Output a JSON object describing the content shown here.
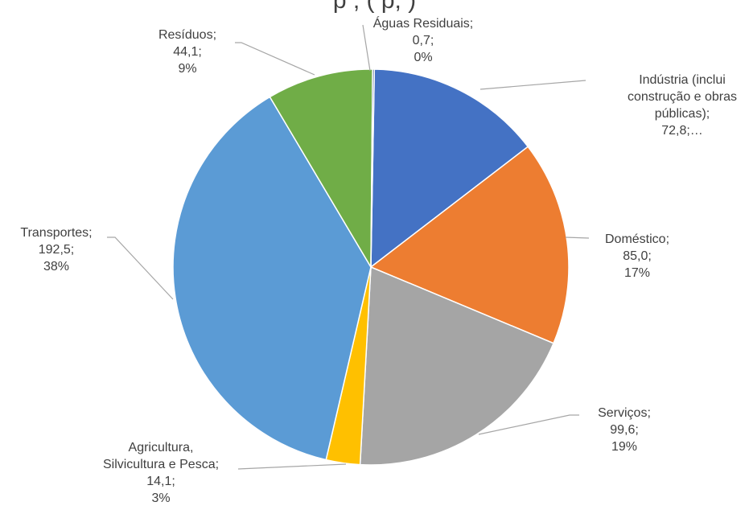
{
  "chart_data": {
    "type": "pie",
    "title": "p                   ,                 (                          p,                )",
    "slices": [
      {
        "label": "Indústria (inclui construção e obras públicas)",
        "value": 72.8,
        "value_text": "72,8",
        "percent_text": "…",
        "color": "#4472C4"
      },
      {
        "label": "Doméstico",
        "value": 85.0,
        "value_text": "85,0",
        "percent_text": "17%",
        "color": "#ED7D31"
      },
      {
        "label": "Serviços",
        "value": 99.6,
        "value_text": "99,6",
        "percent_text": "19%",
        "color": "#A5A5A5"
      },
      {
        "label": "Agricultura, Silvicultura e Pesca",
        "value": 14.1,
        "value_text": "14,1",
        "percent_text": "3%",
        "color": "#FFC000"
      },
      {
        "label": "Transportes",
        "value": 192.5,
        "value_text": "192,5",
        "percent_text": "38%",
        "color": "#5B9BD5"
      },
      {
        "label": "Resíduos",
        "value": 44.1,
        "value_text": "44,1",
        "percent_text": "9%",
        "color": "#70AD47"
      },
      {
        "label": "Águas Residuais",
        "value": 0.7,
        "value_text": "0,7",
        "percent_text": "0%",
        "color": "#264478"
      }
    ],
    "legend": "none"
  }
}
